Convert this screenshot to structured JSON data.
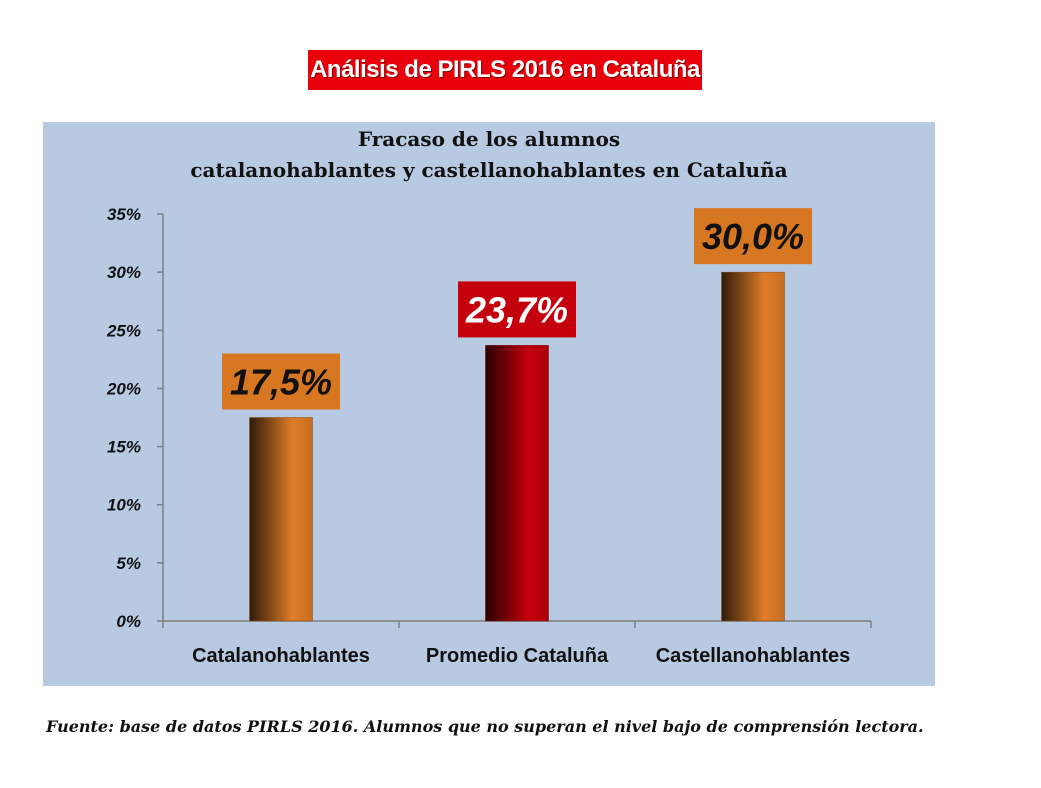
{
  "header": {
    "banner": "Análisis de PIRLS 2016 en Cataluña"
  },
  "chart_data": {
    "type": "bar",
    "title_line1": "Fracaso de los alumnos",
    "title_line2": "catalanohablantes y castellanohablantes en Cataluña",
    "categories": [
      "Catalanohablantes",
      "Promedio Cataluña",
      "Castellanohablantes"
    ],
    "values": [
      17.5,
      23.7,
      30.0
    ],
    "data_labels": [
      "17,5%",
      "23,7%",
      "30,0%"
    ],
    "bar_colors": [
      "#e07d28",
      "#c4000c",
      "#e07d28"
    ],
    "label_backgrounds": [
      "#d77722",
      "#c4000c",
      "#d77722"
    ],
    "label_text_colors": [
      "#111111",
      "#ffffff",
      "#111111"
    ],
    "ylim": [
      0,
      35
    ],
    "yticks": [
      0,
      5,
      10,
      15,
      20,
      25,
      30,
      35
    ],
    "ytick_labels": [
      "0%",
      "5%",
      "10%",
      "15%",
      "20%",
      "25%",
      "30%",
      "35%"
    ],
    "grid": false,
    "panel_color": "#b8c9e2"
  },
  "footer": {
    "source": "Fuente: base de datos PIRLS 2016. Alumnos que no superan el nivel bajo de comprensión lectora."
  }
}
